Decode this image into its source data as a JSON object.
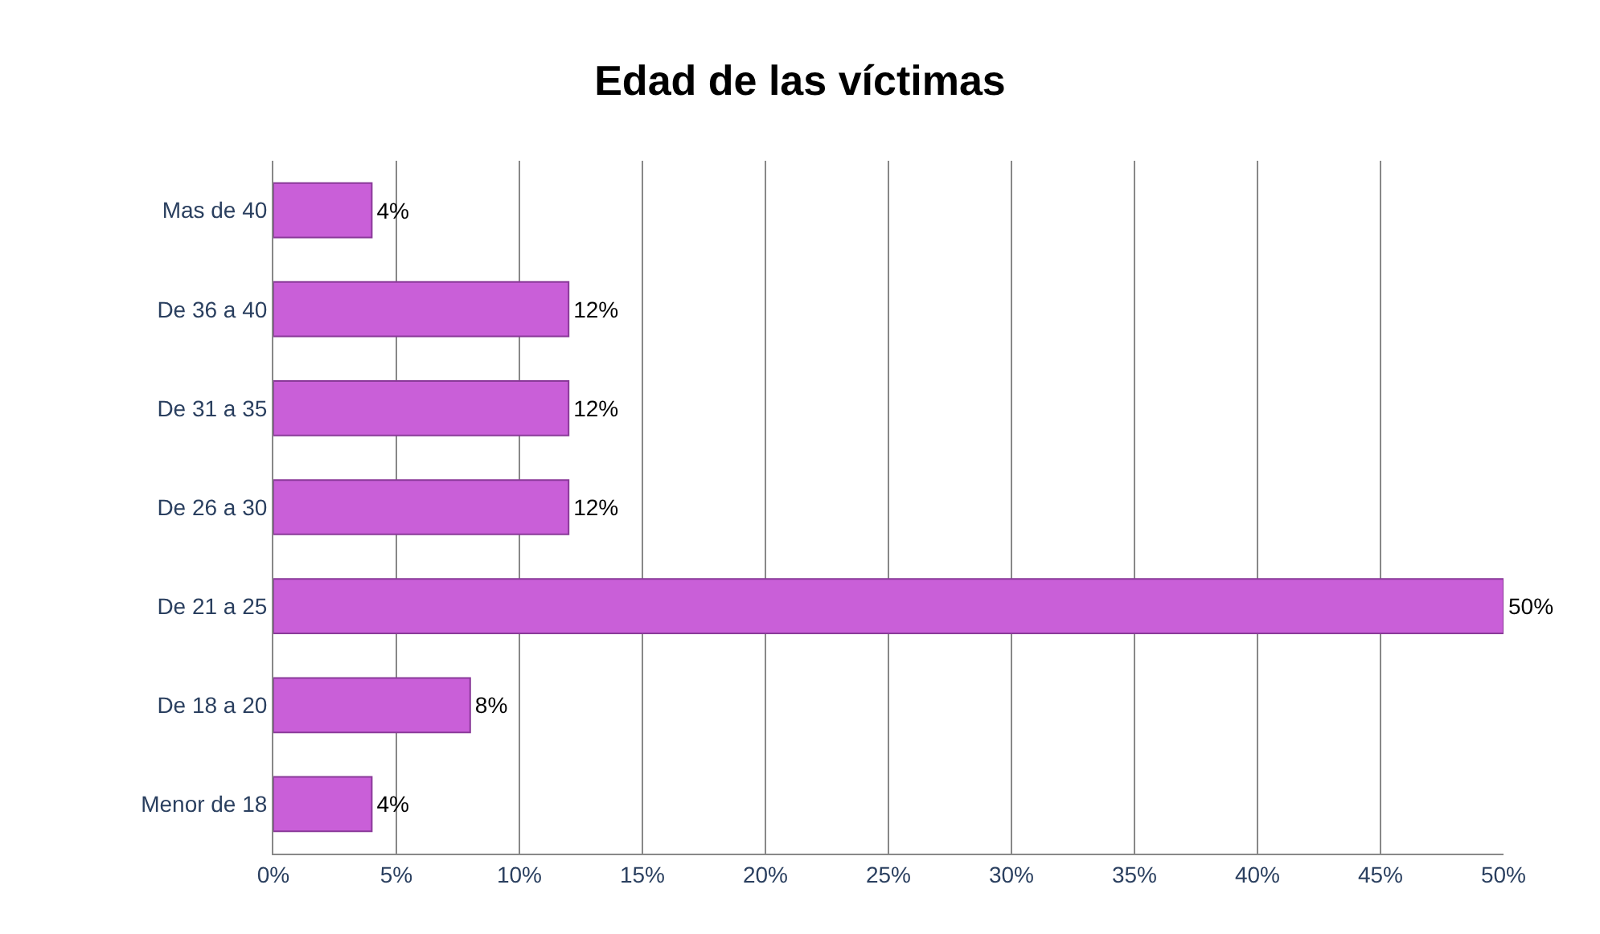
{
  "chart_data": {
    "type": "bar",
    "orientation": "horizontal",
    "title": "Edad de las víctimas",
    "categories": [
      "Mas de 40",
      "De 36 a 40",
      "De 31 a 35",
      "De 26 a 30",
      "De 21 a 25",
      "De 18 a 20",
      "Menor de 18"
    ],
    "values": [
      4,
      12,
      12,
      12,
      50,
      8,
      4
    ],
    "value_labels": [
      "4%",
      "12%",
      "12%",
      "12%",
      "50%",
      "8%",
      "4%"
    ],
    "color": "#c95fd8",
    "xlim": [
      0,
      50
    ],
    "xticks": [
      {
        "value": 0,
        "label": "0%"
      },
      {
        "value": 5,
        "label": "5%"
      },
      {
        "value": 10,
        "label": "10%"
      },
      {
        "value": 15,
        "label": "15%"
      },
      {
        "value": 20,
        "label": "20%"
      },
      {
        "value": 25,
        "label": "25%"
      },
      {
        "value": 30,
        "label": "30%"
      },
      {
        "value": 35,
        "label": "35%"
      },
      {
        "value": 40,
        "label": "40%"
      },
      {
        "value": 45,
        "label": "45%"
      },
      {
        "value": 50,
        "label": "50%"
      }
    ],
    "grid": "x",
    "legend": false
  }
}
